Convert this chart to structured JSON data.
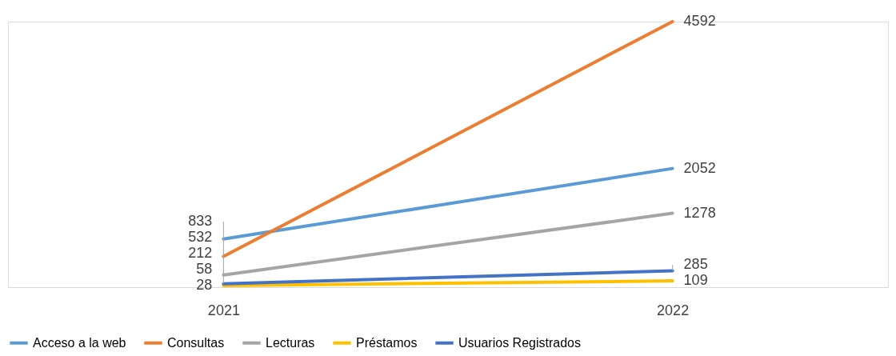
{
  "chart_data": {
    "type": "line",
    "categories": [
      "2021",
      "2022"
    ],
    "series": [
      {
        "name": "Acceso a la web",
        "color": "#5b9bd5",
        "values": [
          833,
          2052
        ]
      },
      {
        "name": "Consultas",
        "color": "#ed7d31",
        "values": [
          532,
          4592
        ]
      },
      {
        "name": "Lecturas",
        "color": "#a5a5a5",
        "values": [
          212,
          1278
        ]
      },
      {
        "name": "Préstamos",
        "color": "#ffc000",
        "values": [
          28,
          109
        ]
      },
      {
        "name": "Usuarios Registrados",
        "color": "#4472c4",
        "values": [
          58,
          285
        ]
      }
    ],
    "data_labels": true,
    "legend": "bottom",
    "grid": false,
    "marker": "none",
    "line_style": "solid"
  }
}
